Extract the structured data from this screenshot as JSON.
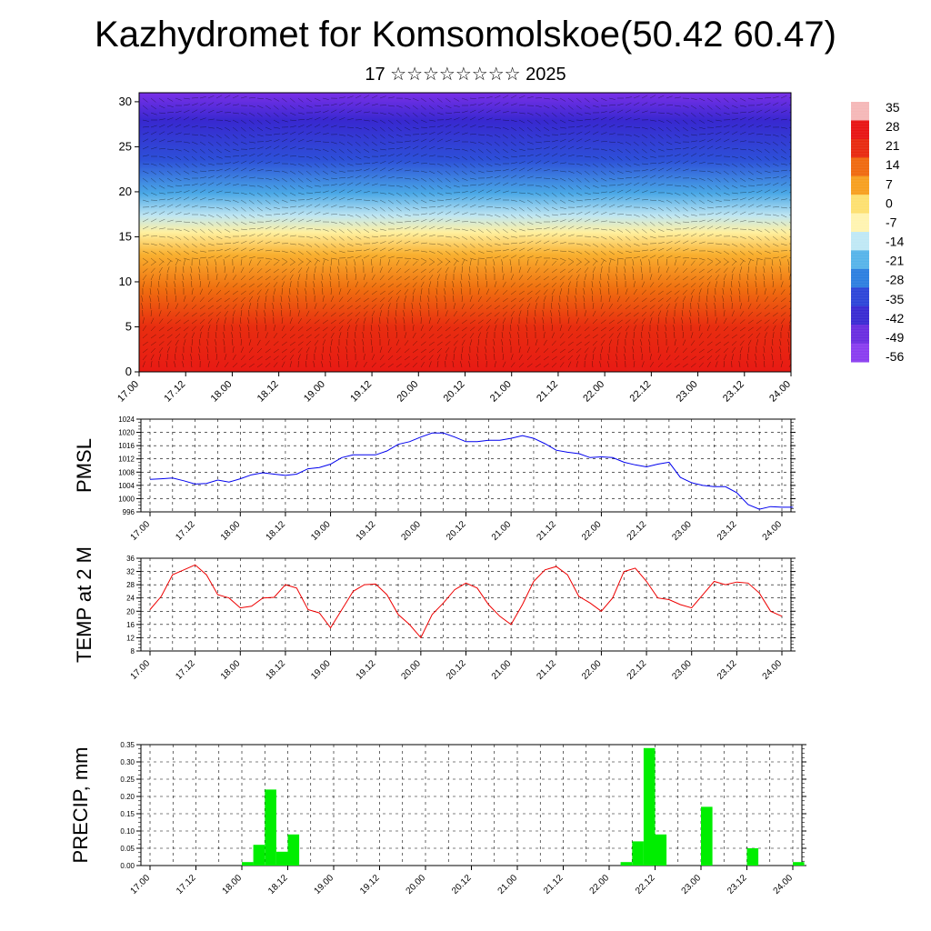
{
  "header": {
    "title": "Kazhydromet for Komsomolskoe(50.42 60.47)",
    "subtitle": "17 ☆☆☆☆☆☆☆☆ 2025"
  },
  "time_labels": [
    "17.00",
    "17.12",
    "18.00",
    "18.12",
    "19.00",
    "19.12",
    "20.00",
    "20.12",
    "21.00",
    "21.12",
    "22.00",
    "22.12",
    "23.00",
    "23.12",
    "24.00"
  ],
  "chart_data": [
    {
      "id": "section",
      "type": "heatmap",
      "title": "",
      "x": [
        "17.00",
        "17.12",
        "18.00",
        "18.12",
        "19.00",
        "19.12",
        "20.00",
        "20.12",
        "21.00",
        "21.12",
        "22.00",
        "22.12",
        "23.00",
        "23.12",
        "24.00"
      ],
      "ylim": [
        0,
        31
      ],
      "yticks": [
        0,
        5,
        10,
        15,
        20,
        25,
        30
      ],
      "colorbar": {
        "labels": [
          "35",
          "28",
          "21",
          "14",
          "7",
          "0",
          "-7",
          "-14",
          "-21",
          "-28",
          "-35",
          "-42",
          "-49",
          "-56"
        ],
        "colors": [
          "#f5b8b8",
          "#e81414",
          "#e82a10",
          "#f06a10",
          "#f7a020",
          "#fde070",
          "#fff4b0",
          "#bfe8f5",
          "#56b4ea",
          "#2d7fe0",
          "#2d45d8",
          "#3a2ad2",
          "#6a2de0",
          "#8a3df0"
        ]
      },
      "field": {
        "temperature_by_height": [
          {
            "height": 0,
            "value": 30
          },
          {
            "height": 5,
            "value": 24
          },
          {
            "height": 10,
            "value": 10
          },
          {
            "height": 15,
            "value": -7
          },
          {
            "height": 20,
            "value": -25
          },
          {
            "height": 25,
            "value": -45
          },
          {
            "height": 30,
            "value": -56
          }
        ]
      }
    },
    {
      "id": "pmsl",
      "type": "line",
      "ylabel": "PMSL",
      "ylim": [
        996,
        1024
      ],
      "yticks": [
        996,
        1000,
        1004,
        1008,
        1012,
        1016,
        1020,
        1024
      ],
      "color": "#0000ee",
      "x_start": 17.0,
      "x_step_days": 0.125,
      "values": [
        1005.8,
        1006,
        1006.2,
        1005.4,
        1004.4,
        1004.6,
        1005.6,
        1005.0,
        1006.0,
        1007.2,
        1007.8,
        1007.4,
        1007.0,
        1007.4,
        1009.0,
        1009.4,
        1010.4,
        1012.4,
        1013.2,
        1013.2,
        1013.2,
        1014.4,
        1016.4,
        1017.2,
        1018.6,
        1019.8,
        1019.8,
        1018.6,
        1017.2,
        1017.2,
        1017.6,
        1017.6,
        1018.2,
        1019.0,
        1018.2,
        1016.6,
        1014.6,
        1014.0,
        1013.6,
        1012.4,
        1012.6,
        1012.4,
        1011.0,
        1010.2,
        1009.6,
        1010.4,
        1011.0,
        1006.4,
        1004.8,
        1004.0,
        1003.6,
        1003.6,
        1001.8,
        998.2,
        996.8,
        997.6,
        997.4,
        997.4
      ]
    },
    {
      "id": "temp2m",
      "type": "line",
      "ylabel": "TEMP at 2 M",
      "ylim": [
        8,
        36
      ],
      "yticks": [
        8,
        12,
        16,
        20,
        24,
        28,
        32,
        36
      ],
      "color": "#ee0000",
      "x_start": 17.0,
      "x_step_days": 0.125,
      "values": [
        20.5,
        24.5,
        31.0,
        32.5,
        34.0,
        31.0,
        25.0,
        24.0,
        21.0,
        21.5,
        24.0,
        24.2,
        28.0,
        27.0,
        20.5,
        19.5,
        15.0,
        20.5,
        26.0,
        28.0,
        28.2,
        25.0,
        19.0,
        16.0,
        12.0,
        19.0,
        22.5,
        26.5,
        28.5,
        27.0,
        22.0,
        18.5,
        16.0,
        22.0,
        29.0,
        32.5,
        33.5,
        31.0,
        24.5,
        22.5,
        20.0,
        24.0,
        32.0,
        33.0,
        29.0,
        24.0,
        23.5,
        22.0,
        21.0,
        25.0,
        29.0,
        28.0,
        28.8,
        28.5,
        25.5,
        20.0,
        18.5
      ]
    },
    {
      "id": "precip",
      "type": "bar",
      "ylabel": "PRECIP, mm",
      "ylim": [
        0,
        0.35
      ],
      "yticks": [
        "0.00",
        "0.05",
        "0.10",
        "0.15",
        "0.20",
        "0.25",
        "0.30",
        "0.35"
      ],
      "color": "#00ee00",
      "x_start": 17.0,
      "x_step_days": 0.125,
      "values": [
        0,
        0,
        0,
        0,
        0,
        0,
        0,
        0,
        0.01,
        0.06,
        0.22,
        0.04,
        0.09,
        0,
        0,
        0,
        0,
        0,
        0,
        0,
        0,
        0,
        0,
        0,
        0,
        0,
        0,
        0,
        0,
        0,
        0,
        0,
        0,
        0,
        0,
        0,
        0,
        0,
        0,
        0,
        0,
        0.01,
        0.07,
        0.34,
        0.09,
        0,
        0,
        0,
        0.17,
        0,
        0,
        0,
        0.05,
        0,
        0,
        0,
        0.01
      ]
    }
  ]
}
